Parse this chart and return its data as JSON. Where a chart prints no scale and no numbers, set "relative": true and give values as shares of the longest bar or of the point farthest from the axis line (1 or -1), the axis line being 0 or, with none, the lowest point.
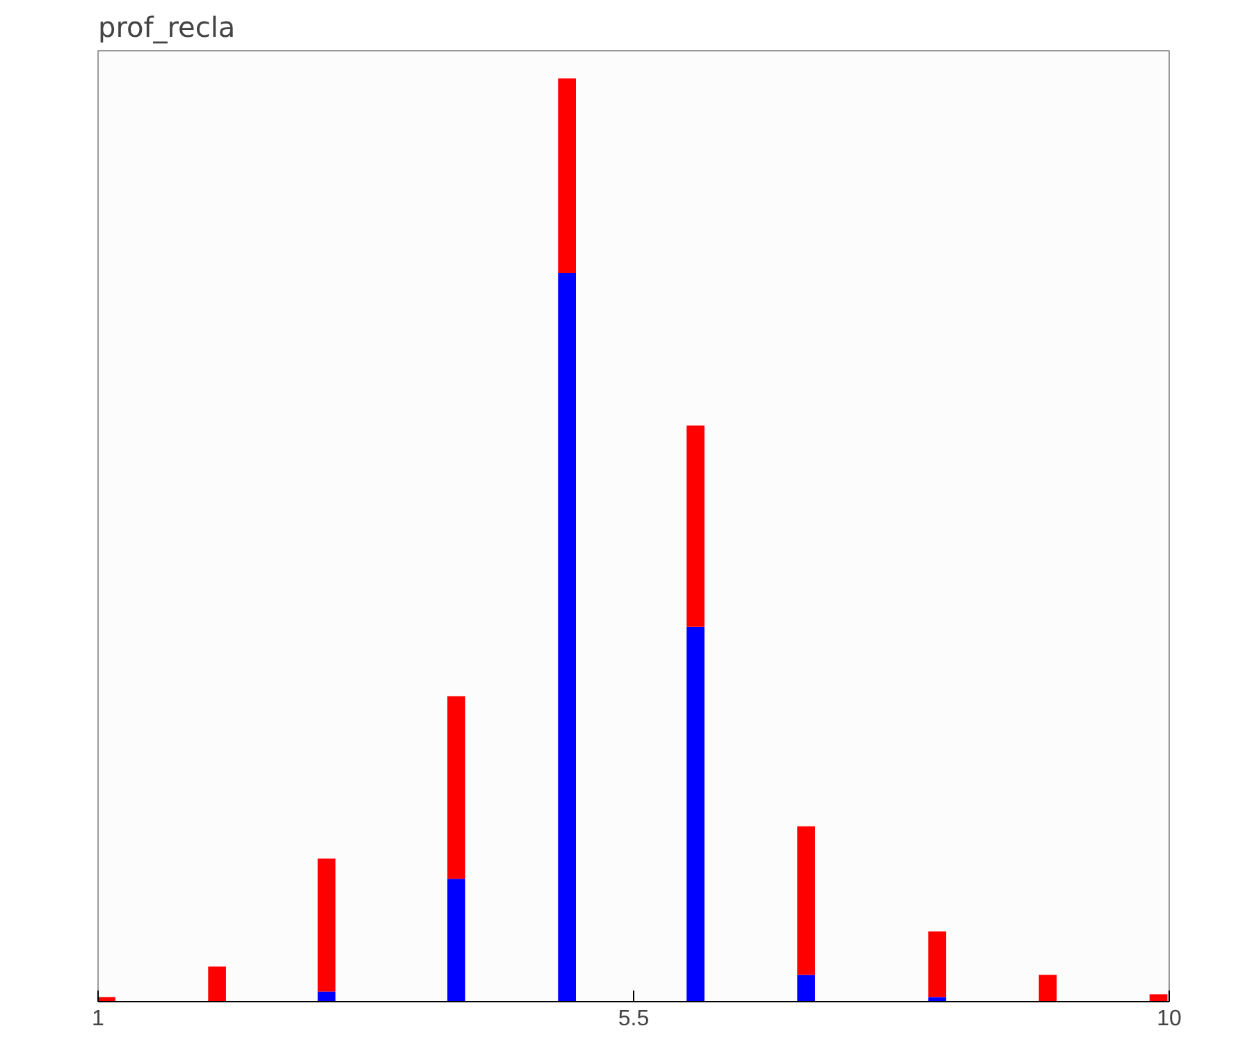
{
  "chart_data": {
    "type": "bar",
    "title": "prof_recla",
    "stacked": true,
    "relative": true,
    "x": [
      1.07,
      2.0,
      2.92,
      4.01,
      4.94,
      6.02,
      6.95,
      8.05,
      8.98,
      9.91
    ],
    "xlim": [
      1,
      10
    ],
    "xticks": [
      1,
      5.5,
      10
    ],
    "grid": false,
    "series": [
      {
        "color": "#0000ff",
        "values": [
          0,
          0,
          0.011,
          0.133,
          0.789,
          0.406,
          0.029,
          0.005,
          0,
          0
        ]
      },
      {
        "color": "#ff0000",
        "values": [
          0.005,
          0.038,
          0.144,
          0.198,
          0.211,
          0.218,
          0.161,
          0.071,
          0.029,
          0.008
        ]
      }
    ]
  }
}
